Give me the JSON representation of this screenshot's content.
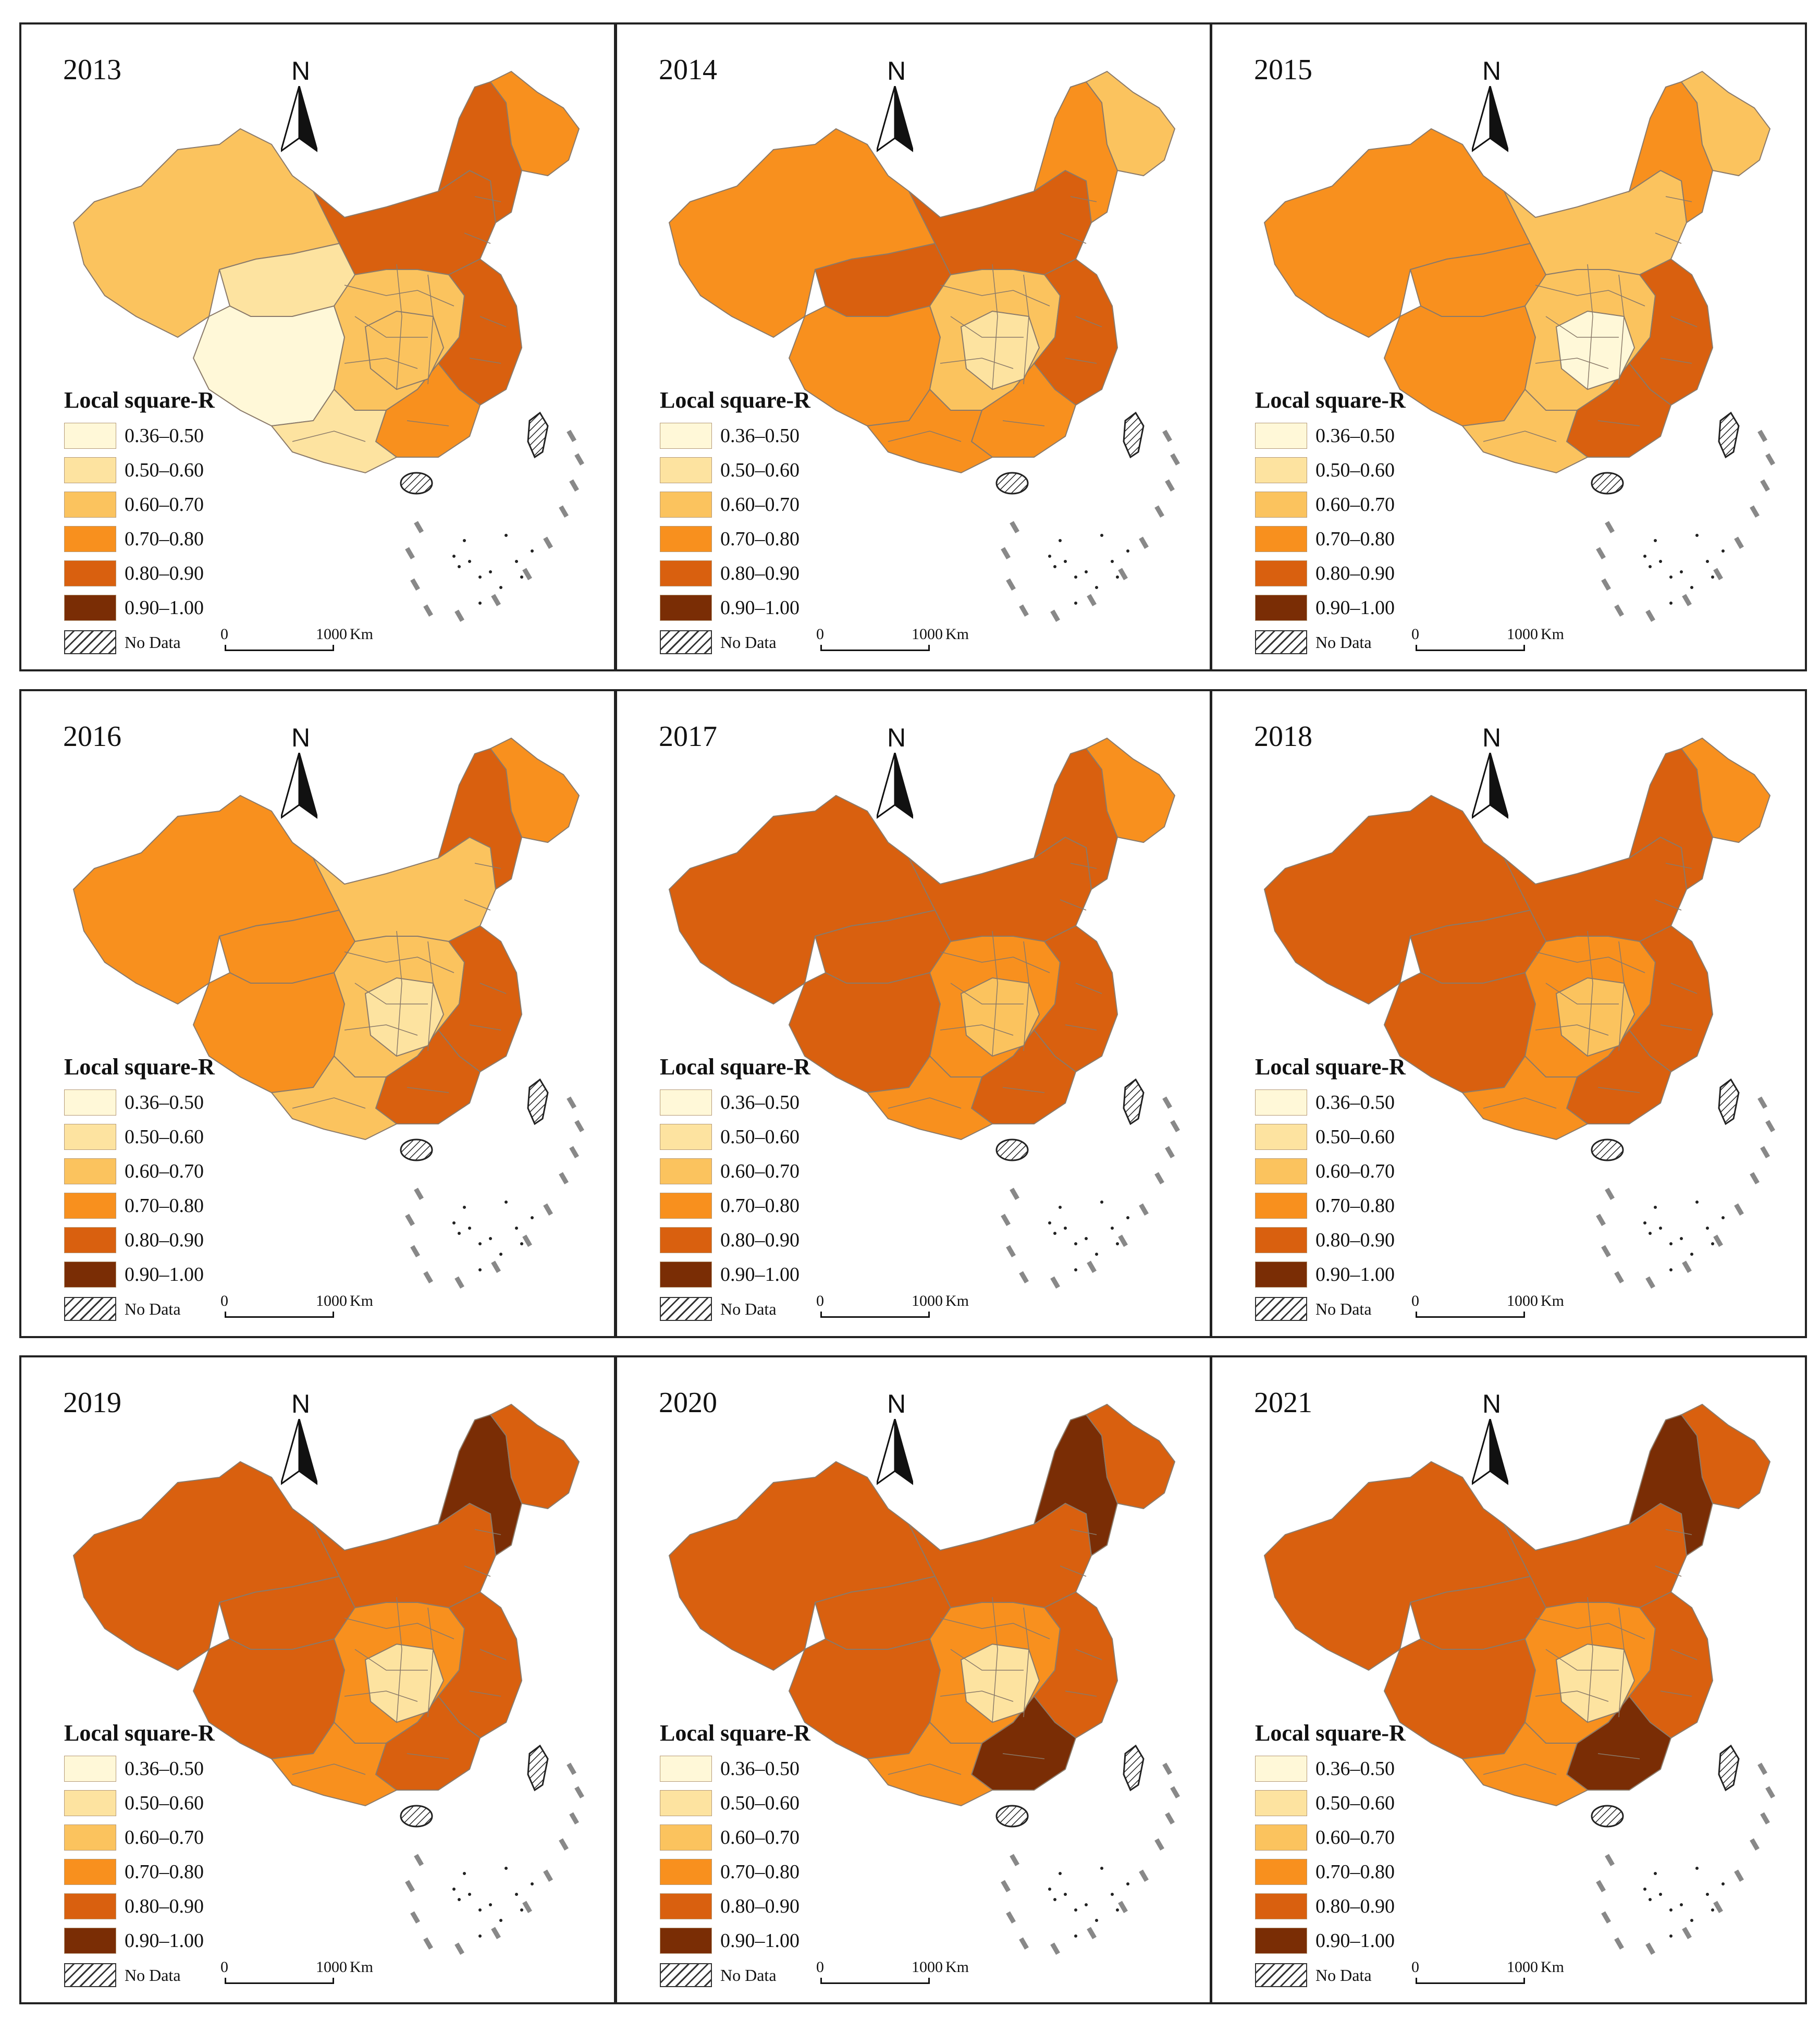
{
  "figure": {
    "legend_title": "Local square-R",
    "legend_classes": [
      {
        "label": "0.36–0.50",
        "color": "#fff8d8"
      },
      {
        "label": "0.50–0.60",
        "color": "#fde3a0"
      },
      {
        "label": "0.60–0.70",
        "color": "#fbc35e"
      },
      {
        "label": "0.70–0.80",
        "color": "#f8901e"
      },
      {
        "label": "0.80–0.90",
        "color": "#d9600f"
      },
      {
        "label": "0.90–1.00",
        "color": "#7a2d05"
      }
    ],
    "nodata_label": "No Data",
    "north_label": "N",
    "scale": {
      "zero": "0",
      "max": "1000",
      "unit": "Km"
    },
    "panels": [
      {
        "year": "2013",
        "west": 2,
        "north_tibet": 1,
        "tibet_core": 0,
        "northeast": 4,
        "north_china": 4,
        "central": 2,
        "central_core": 2,
        "east_coast": 4,
        "south": 3,
        "southwest": 1,
        "far_ne": 3
      },
      {
        "year": "2014",
        "west": 3,
        "north_tibet": 4,
        "tibet_core": 3,
        "northeast": 3,
        "north_china": 4,
        "central": 2,
        "central_core": 1,
        "east_coast": 4,
        "south": 3,
        "southwest": 3,
        "far_ne": 2
      },
      {
        "year": "2015",
        "west": 3,
        "north_tibet": 3,
        "tibet_core": 3,
        "northeast": 3,
        "north_china": 2,
        "central": 2,
        "central_core": 0,
        "east_coast": 4,
        "south": 4,
        "southwest": 2,
        "far_ne": 2
      },
      {
        "year": "2016",
        "west": 3,
        "north_tibet": 3,
        "tibet_core": 3,
        "northeast": 4,
        "north_china": 2,
        "central": 2,
        "central_core": 1,
        "east_coast": 4,
        "south": 4,
        "southwest": 2,
        "far_ne": 3
      },
      {
        "year": "2017",
        "west": 4,
        "north_tibet": 4,
        "tibet_core": 4,
        "northeast": 4,
        "north_china": 4,
        "central": 3,
        "central_core": 2,
        "east_coast": 4,
        "south": 4,
        "southwest": 3,
        "far_ne": 3
      },
      {
        "year": "2018",
        "west": 4,
        "north_tibet": 4,
        "tibet_core": 4,
        "northeast": 4,
        "north_china": 4,
        "central": 3,
        "central_core": 2,
        "east_coast": 4,
        "south": 4,
        "southwest": 3,
        "far_ne": 3
      },
      {
        "year": "2019",
        "west": 4,
        "north_tibet": 4,
        "tibet_core": 4,
        "northeast": 5,
        "north_china": 4,
        "central": 3,
        "central_core": 1,
        "east_coast": 4,
        "south": 4,
        "southwest": 3,
        "far_ne": 4
      },
      {
        "year": "2020",
        "west": 4,
        "north_tibet": 4,
        "tibet_core": 4,
        "northeast": 5,
        "north_china": 4,
        "central": 3,
        "central_core": 1,
        "east_coast": 4,
        "south": 5,
        "southwest": 3,
        "far_ne": 4
      },
      {
        "year": "2021",
        "west": 4,
        "north_tibet": 4,
        "tibet_core": 4,
        "northeast": 5,
        "north_china": 4,
        "central": 3,
        "central_core": 1,
        "east_coast": 4,
        "south": 5,
        "southwest": 3,
        "far_ne": 4
      }
    ]
  }
}
